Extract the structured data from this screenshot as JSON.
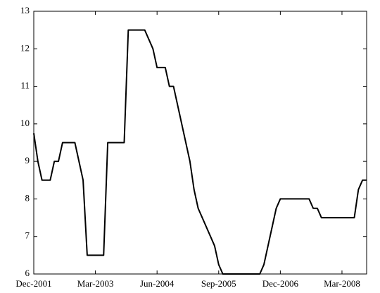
{
  "chart_data": {
    "type": "line",
    "x": [
      "Dec-2001",
      "Jan-2002",
      "Feb-2002",
      "Mar-2002",
      "Apr-2002",
      "May-2002",
      "Jun-2002",
      "Jul-2002",
      "Aug-2002",
      "Sep-2002",
      "Oct-2002",
      "Nov-2002",
      "Dec-2002",
      "Jan-2003",
      "Feb-2003",
      "Mar-2003",
      "Apr-2003",
      "May-2003",
      "Jun-2003",
      "Jul-2003",
      "Aug-2003",
      "Sep-2003",
      "Oct-2003",
      "Nov-2003",
      "Dec-2003",
      "Jan-2004",
      "Feb-2004",
      "Mar-2004",
      "Apr-2004",
      "May-2004",
      "Jun-2004",
      "Jul-2004",
      "Aug-2004",
      "Sep-2004",
      "Oct-2004",
      "Nov-2004",
      "Dec-2004",
      "Jan-2005",
      "Feb-2005",
      "Mar-2005",
      "Apr-2005",
      "May-2005",
      "Jun-2005",
      "Jul-2005",
      "Aug-2005",
      "Sep-2005",
      "Oct-2005",
      "Nov-2005",
      "Dec-2005",
      "Jan-2006",
      "Feb-2006",
      "Mar-2006",
      "Apr-2006",
      "May-2006",
      "Jun-2006",
      "Jul-2006",
      "Aug-2006",
      "Sep-2006",
      "Oct-2006",
      "Nov-2006",
      "Dec-2006",
      "Jan-2007",
      "Feb-2007",
      "Mar-2007",
      "Apr-2007",
      "May-2007",
      "Jun-2007",
      "Jul-2007",
      "Aug-2007",
      "Sep-2007",
      "Oct-2007",
      "Nov-2007",
      "Dec-2007",
      "Jan-2008",
      "Feb-2008",
      "Mar-2008",
      "Apr-2008",
      "May-2008",
      "Jun-2008",
      "Jul-2008",
      "Aug-2008",
      "Sep-2008"
    ],
    "values": [
      9.75,
      9.0,
      8.5,
      8.5,
      8.5,
      9.0,
      9.0,
      9.5,
      9.5,
      9.5,
      9.5,
      9.0,
      8.5,
      6.5,
      6.5,
      6.5,
      6.5,
      6.5,
      9.5,
      9.5,
      9.5,
      9.5,
      9.5,
      12.5,
      12.5,
      12.5,
      12.5,
      12.5,
      12.25,
      12.0,
      11.5,
      11.5,
      11.5,
      11.0,
      11.0,
      10.5,
      10.0,
      9.5,
      9.0,
      8.25,
      7.75,
      7.5,
      7.25,
      7.0,
      6.75,
      6.25,
      6.0,
      6.0,
      6.0,
      6.0,
      6.0,
      6.0,
      6.0,
      6.0,
      6.0,
      6.0,
      6.25,
      6.75,
      7.25,
      7.75,
      8.0,
      8.0,
      8.0,
      8.0,
      8.0,
      8.0,
      8.0,
      8.0,
      7.75,
      7.75,
      7.5,
      7.5,
      7.5,
      7.5,
      7.5,
      7.5,
      7.5,
      7.5,
      7.5,
      8.25,
      8.5,
      8.5
    ],
    "color": "#000000",
    "xlim": [
      "Dec-2001",
      "Sep-2008"
    ],
    "xticks": [
      "Dec-2001",
      "Mar-2003",
      "Jun-2004",
      "Sep-2005",
      "Dec-2006",
      "Mar-2008"
    ],
    "ylim": [
      6,
      13
    ],
    "yticks": [
      6,
      7,
      8,
      9,
      10,
      11,
      12,
      13
    ],
    "grid": false
  }
}
